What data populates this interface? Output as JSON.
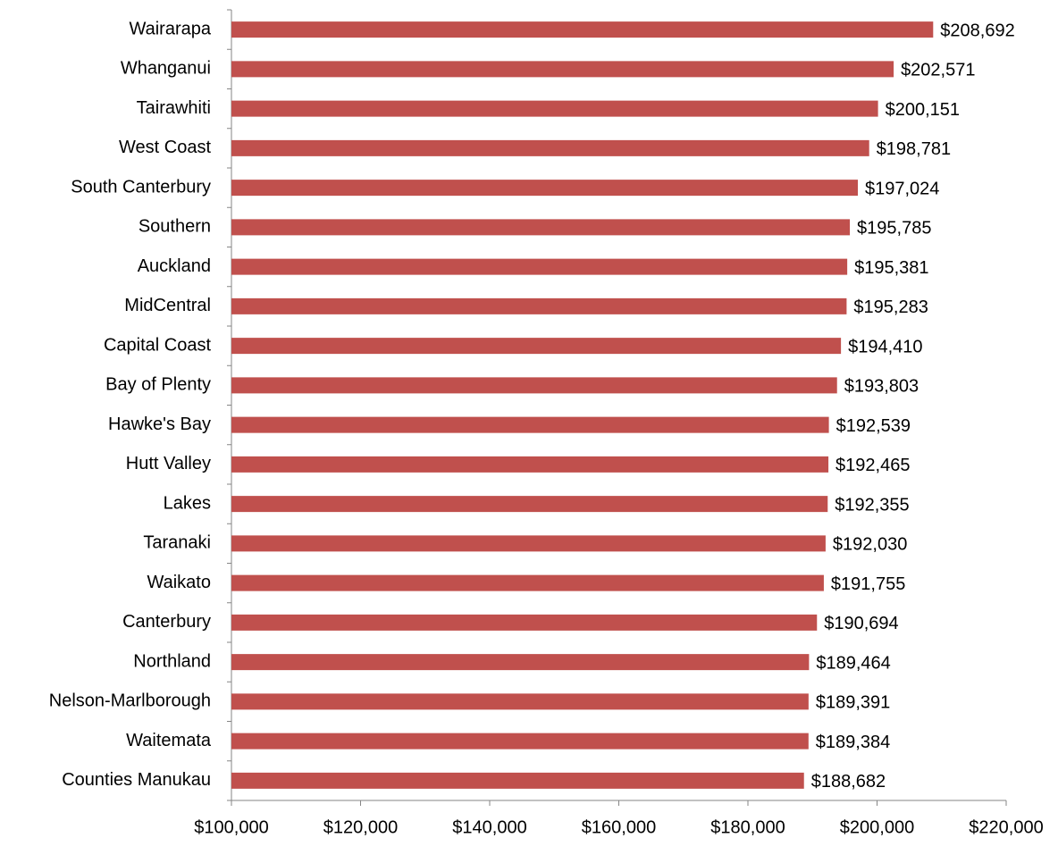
{
  "chart_data": {
    "type": "bar",
    "orientation": "horizontal",
    "color": "#c0504d",
    "grid": false,
    "categories": [
      "Wairarapa",
      "Whanganui",
      "Tairawhiti",
      "West Coast",
      "South Canterbury",
      "Southern",
      "Auckland",
      "MidCentral",
      "Capital Coast",
      "Bay of Plenty",
      "Hawke's Bay",
      "Hutt Valley",
      "Lakes",
      "Taranaki",
      "Waikato",
      "Canterbury",
      "Northland",
      "Nelson-Marlborough",
      "Waitemata",
      "Counties Manukau"
    ],
    "values": [
      208692,
      202571,
      200151,
      198781,
      197024,
      195785,
      195381,
      195283,
      194410,
      193803,
      192539,
      192465,
      192355,
      192030,
      191755,
      190694,
      189464,
      189391,
      189384,
      188682
    ],
    "value_labels": [
      "$208,692",
      "$202,571",
      "$200,151",
      "$198,781",
      "$197,024",
      "$195,785",
      "$195,381",
      "$195,283",
      "$194,410",
      "$193,803",
      "$192,539",
      "$192,465",
      "$192,355",
      "$192,030",
      "$191,755",
      "$190,694",
      "$189,464",
      "$189,391",
      "$189,384",
      "$188,682"
    ],
    "xlim": [
      100000,
      220000
    ],
    "xticks": [
      {
        "value": 100000,
        "label": "$100,000"
      },
      {
        "value": 120000,
        "label": "$120,000"
      },
      {
        "value": 140000,
        "label": "$140,000"
      },
      {
        "value": 160000,
        "label": "$160,000"
      },
      {
        "value": 180000,
        "label": "$180,000"
      },
      {
        "value": 200000,
        "label": "$200,000"
      },
      {
        "value": 220000,
        "label": "$220,000"
      }
    ]
  }
}
